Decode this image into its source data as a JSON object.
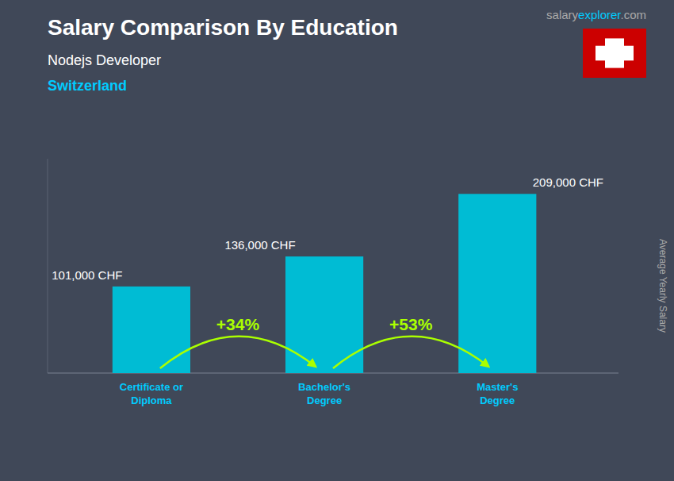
{
  "chart_data": {
    "type": "bar",
    "title": "Salary Comparison By Education",
    "subtitle": "Nodejs Developer",
    "country": "Switzerland",
    "source": [
      "salary",
      "explorer",
      ".com"
    ],
    "ylabel": "Average Yearly Salary",
    "categories": [
      "Certificate or\nDiploma",
      "Bachelor's\nDegree",
      "Master's\nDegree"
    ],
    "values": [
      101000,
      136000,
      209000
    ],
    "value_labels": [
      "101,000 CHF",
      "136,000 CHF",
      "209,000 CHF"
    ],
    "data_labels": true,
    "annotations": [
      "+34%",
      "+53%"
    ],
    "color": "#00bcd4",
    "ylim": [
      0,
      250000
    ],
    "tick_labels": false,
    "grid": false
  }
}
